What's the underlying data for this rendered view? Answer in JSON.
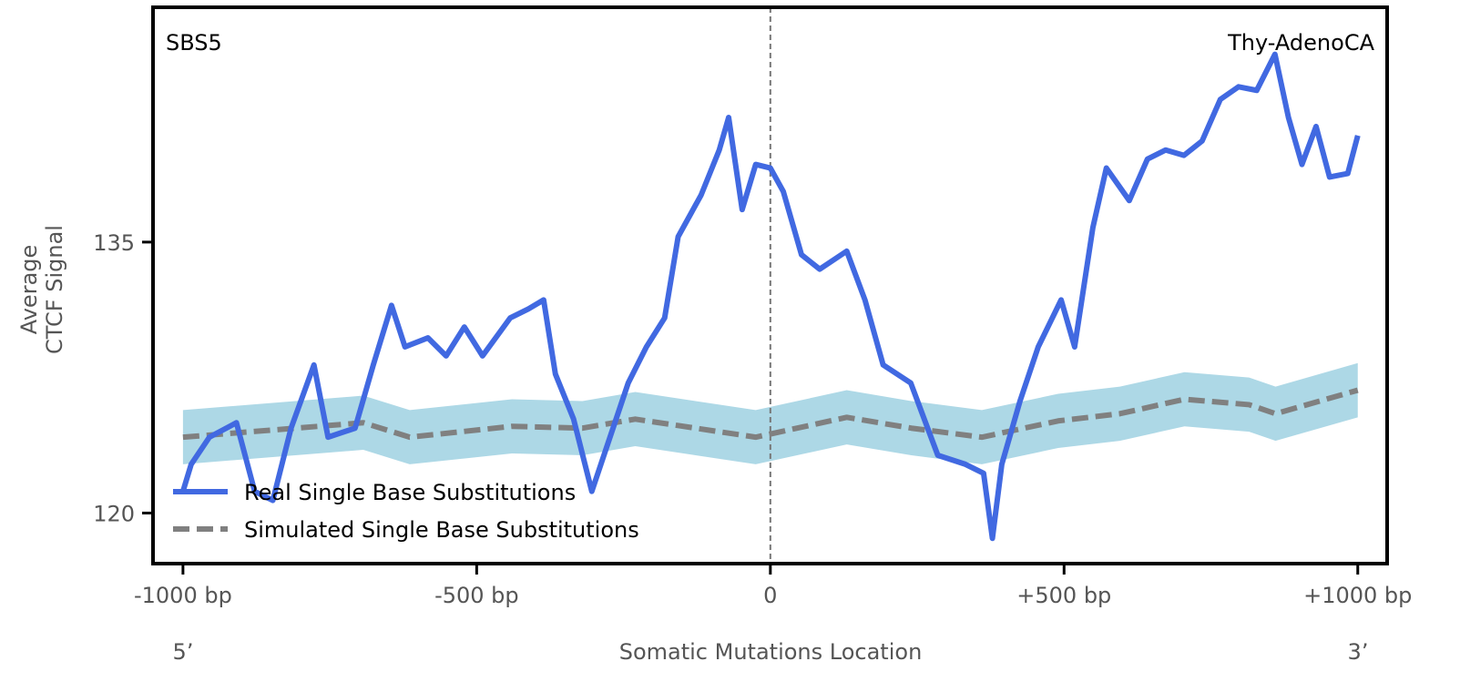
{
  "chart_data": {
    "type": "line",
    "title_left": "SBS5",
    "title_right": "Thy-AdenoCA",
    "ylabel_lines": [
      "Average",
      "CTCF Signal"
    ],
    "xlabel": "Somatic Mutations Location",
    "x_end_labels": {
      "left": "5’",
      "right": "3’"
    },
    "xlim": [
      -1051,
      1050
    ],
    "ylim": [
      117.2,
      148.0
    ],
    "x_ticks": [
      {
        "value": -1000,
        "label": "-1000 bp"
      },
      {
        "value": -500,
        "label": "-500 bp"
      },
      {
        "value": 0,
        "label": "0"
      },
      {
        "value": 500,
        "label": "+500 bp"
      },
      {
        "value": 1000,
        "label": "+1000 bp"
      }
    ],
    "y_ticks": [
      {
        "value": 120,
        "label": "120"
      },
      {
        "value": 135,
        "label": "135"
      }
    ],
    "center_line": 0,
    "legend": {
      "placement": "bottom-left",
      "entries": [
        "Real Single Base Substitutions",
        "Simulated Single Base Substitutions"
      ]
    },
    "series": [
      {
        "name": "Real Single Base Substitutions",
        "color": "#4169E1",
        "style": "solid",
        "x": [
          -1000,
          -986,
          -955,
          -909,
          -878,
          -847,
          -816,
          -777,
          -753,
          -707,
          -676,
          -645,
          -622,
          -583,
          -552,
          -521,
          -490,
          -443,
          -412,
          -386,
          -366,
          -335,
          -304,
          -273,
          -242,
          -211,
          -180,
          -157,
          -118,
          -87,
          -71,
          -48,
          -25,
          0,
          22,
          53,
          84,
          130,
          161,
          192,
          239,
          285,
          332,
          363,
          378,
          394,
          425,
          456,
          495,
          518,
          549,
          572,
          611,
          642,
          673,
          704,
          735,
          766,
          797,
          828,
          859,
          882,
          905,
          929,
          952,
          983,
          1000
        ],
        "y": [
          121.2,
          122.7,
          124.2,
          125.0,
          121.2,
          120.7,
          124.7,
          128.2,
          124.2,
          124.7,
          128.2,
          131.5,
          129.2,
          129.7,
          128.7,
          130.3,
          128.7,
          130.8,
          131.3,
          131.8,
          127.7,
          125.2,
          121.2,
          124.2,
          127.2,
          129.2,
          130.8,
          135.3,
          137.6,
          140.1,
          141.9,
          136.8,
          139.3,
          139.1,
          137.8,
          134.3,
          133.5,
          134.5,
          131.8,
          128.2,
          127.2,
          123.2,
          122.7,
          122.2,
          118.6,
          122.7,
          126.2,
          129.2,
          131.8,
          129.2,
          135.8,
          139.1,
          137.3,
          139.6,
          140.1,
          139.8,
          140.6,
          142.9,
          143.6,
          143.4,
          145.4,
          141.9,
          139.3,
          141.4,
          138.6,
          138.8,
          140.9
        ]
      },
      {
        "name": "Simulated Single Base Substitutions",
        "color": "#808080",
        "band_color": "#ADD8E6",
        "style": "dashed",
        "band_halfwidth": 1.5,
        "x": [
          -1000,
          -693,
          -614,
          -440,
          -320,
          -230,
          -25,
          130,
          240,
          360,
          490,
          595,
          705,
          815,
          860,
          1000
        ],
        "y": [
          124.2,
          125.0,
          124.2,
          124.8,
          124.7,
          125.2,
          124.2,
          125.3,
          124.7,
          124.2,
          125.1,
          125.5,
          126.3,
          126.0,
          125.5,
          126.8
        ]
      }
    ]
  }
}
